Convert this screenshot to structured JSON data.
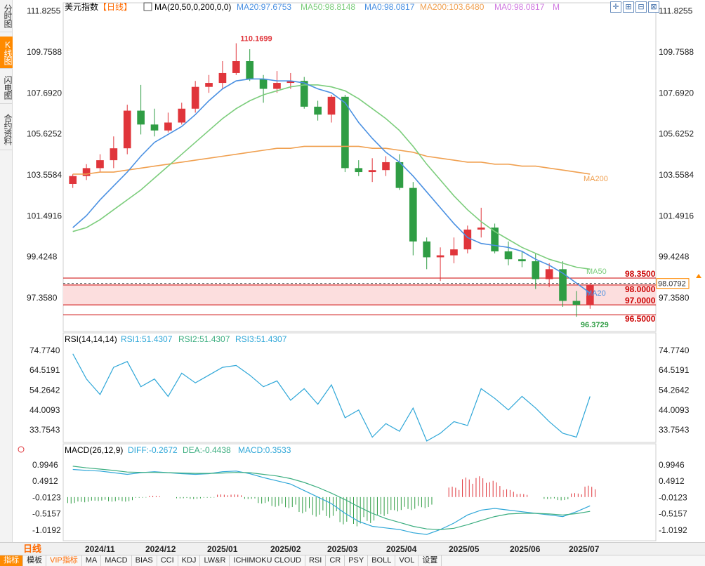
{
  "sidebar": {
    "tabs": [
      {
        "label": "分时图",
        "active": false
      },
      {
        "label": "K线图",
        "active": true
      },
      {
        "label": "闪电图",
        "active": false
      },
      {
        "label": "合约资料",
        "active": false
      }
    ]
  },
  "header": {
    "symbol": "美元指数",
    "period": "【日线】",
    "ma_label": "MA(20,50,0,200,0,0)",
    "ma_values": [
      {
        "text": "MA20:97.6753",
        "color": "#4a90e2"
      },
      {
        "text": "MA50:98.8148",
        "color": "#7ccd7c"
      },
      {
        "text": "MA0:98.0817",
        "color": "#4a90e2"
      },
      {
        "text": "MA200:103.6480",
        "color": "#f0a050"
      },
      {
        "text": "MA0:98.0817",
        "color": "#d07ae0"
      },
      {
        "text": "M",
        "color": "#d07ae0"
      }
    ]
  },
  "toolbar": {
    "icons": [
      {
        "name": "crosshair-icon",
        "glyph": "✛"
      },
      {
        "name": "zoom-in-icon",
        "glyph": "⊞"
      },
      {
        "name": "zoom-out-icon",
        "glyph": "⊟"
      },
      {
        "name": "fit-icon",
        "glyph": "⊠"
      }
    ]
  },
  "price_axis": {
    "ticks": [
      "111.8255",
      "109.7588",
      "107.6920",
      "105.6252",
      "103.5584",
      "101.4916",
      "99.4248",
      "97.3580"
    ]
  },
  "rsi_axis": {
    "ticks": [
      "74.7740",
      "64.5191",
      "54.2642",
      "44.0093",
      "33.7543"
    ]
  },
  "macd_axis": {
    "ticks": [
      "0.9946",
      "0.4912",
      "-0.0123",
      "-0.5157",
      "-1.0192"
    ]
  },
  "annotations": {
    "high_label": "110.1699",
    "low_label": "96.3729",
    "ma50_tag": "MA50",
    "ma20_tag": "MA20",
    "ma200_tag": "MA200",
    "current_price": "98.0792",
    "levels": [
      "98.3500",
      "98.0000",
      "97.0000",
      "96.5000"
    ]
  },
  "rsi_header": {
    "label": "RSI(14,14,14)",
    "v1": "RSI1:51.4307",
    "v2": "RSI2:51.4307",
    "v3": "RSI3:51.4307"
  },
  "macd_header": {
    "label": "MACD(26,12,9)",
    "diff": "DIFF:-0.2672",
    "dea": "DEA:-0.4438",
    "macd": "MACD:0.3533"
  },
  "bottom": {
    "period_label": "日线",
    "dates": [
      "2024/11",
      "2024/12",
      "2025/01",
      "2025/02",
      "2025/03",
      "2025/04",
      "2025/05",
      "2025/06",
      "2025/07"
    ],
    "indicator_tabs": [
      {
        "label": "指标",
        "active": true,
        "vip": false
      },
      {
        "label": "模板",
        "active": false,
        "vip": false
      },
      {
        "label": "VIP指标",
        "active": false,
        "vip": true
      },
      {
        "label": "MA",
        "active": false,
        "vip": false
      },
      {
        "label": "MACD",
        "active": false,
        "vip": false
      },
      {
        "label": "BIAS",
        "active": false,
        "vip": false
      },
      {
        "label": "CCI",
        "active": false,
        "vip": false
      },
      {
        "label": "KDJ",
        "active": false,
        "vip": false
      },
      {
        "label": "LW&R",
        "active": false,
        "vip": false
      },
      {
        "label": "ICHIMOKU CLOUD",
        "active": false,
        "vip": false
      },
      {
        "label": "RSI",
        "active": false,
        "vip": false
      },
      {
        "label": "CR",
        "active": false,
        "vip": false
      },
      {
        "label": "PSY",
        "active": false,
        "vip": false
      },
      {
        "label": "BOLL",
        "active": false,
        "vip": false
      },
      {
        "label": "VOL",
        "active": false,
        "vip": false
      },
      {
        "label": "设置",
        "active": false,
        "vip": false
      }
    ]
  },
  "colors": {
    "up": "#e0353b",
    "down": "#2f9d44",
    "ma20": "#4a90e2",
    "ma50": "#7ccd7c",
    "ma200": "#f0a050",
    "zone_fill": "#fcdede",
    "level_line": "#cc0000",
    "rsi": "#2fa7d8",
    "diff": "#2fa7d8",
    "dea": "#3cae80"
  },
  "chart_data": [
    {
      "type": "candlestick",
      "title": "美元指数【日线】",
      "x": [
        "2024-10-14",
        "2024-10-21",
        "2024-10-28",
        "2024-11-04",
        "2024-11-11",
        "2024-11-18",
        "2024-11-25",
        "2024-12-02",
        "2024-12-09",
        "2024-12-16",
        "2024-12-23",
        "2024-12-30",
        "2025-01-06",
        "2025-01-13",
        "2025-01-20",
        "2025-01-27",
        "2025-02-03",
        "2025-02-10",
        "2025-02-17",
        "2025-02-24",
        "2025-03-03",
        "2025-03-10",
        "2025-03-17",
        "2025-03-24",
        "2025-03-31",
        "2025-04-07",
        "2025-04-14",
        "2025-04-21",
        "2025-04-28",
        "2025-05-05",
        "2025-05-12",
        "2025-05-19",
        "2025-05-26",
        "2025-06-02",
        "2025-06-09",
        "2025-06-16",
        "2025-06-23",
        "2025-06-30",
        "2025-07-07"
      ],
      "open": [
        103.1,
        103.5,
        103.9,
        104.3,
        104.9,
        106.8,
        106.1,
        105.8,
        106.2,
        106.9,
        108.0,
        108.2,
        108.7,
        109.3,
        108.4,
        107.9,
        108.2,
        108.3,
        107.0,
        106.6,
        107.5,
        103.9,
        103.7,
        103.8,
        104.2,
        102.9,
        100.2,
        99.4,
        99.5,
        99.8,
        100.8,
        100.9,
        99.7,
        99.3,
        99.2,
        98.3,
        98.8,
        97.2,
        97.0
      ],
      "high": [
        103.6,
        104.1,
        104.6,
        105.5,
        107.1,
        108.1,
        106.9,
        106.7,
        107.2,
        108.3,
        108.6,
        109.3,
        110.2,
        109.9,
        108.6,
        108.8,
        108.7,
        108.5,
        107.3,
        107.6,
        107.6,
        104.3,
        104.4,
        104.5,
        104.6,
        103.2,
        100.4,
        99.9,
        100.4,
        101.0,
        101.9,
        101.1,
        100.2,
        99.7,
        99.6,
        99.1,
        99.2,
        97.7,
        98.1
      ],
      "low": [
        102.9,
        103.3,
        103.7,
        103.9,
        104.6,
        105.6,
        105.5,
        105.7,
        106.1,
        106.7,
        107.7,
        107.9,
        108.6,
        108.3,
        107.2,
        107.7,
        107.9,
        106.9,
        106.3,
        106.2,
        103.7,
        103.5,
        103.2,
        103.5,
        102.8,
        99.5,
        98.8,
        98.2,
        99.1,
        99.6,
        100.4,
        99.6,
        99.0,
        98.9,
        97.8,
        97.9,
        96.9,
        96.4,
        96.8
      ],
      "close": [
        103.5,
        103.9,
        104.3,
        104.9,
        106.8,
        106.1,
        105.8,
        106.2,
        106.9,
        108.0,
        108.2,
        108.7,
        109.3,
        108.4,
        107.9,
        108.2,
        108.3,
        107.0,
        106.6,
        107.5,
        103.9,
        103.7,
        103.8,
        104.2,
        102.9,
        100.2,
        99.4,
        99.5,
        99.8,
        100.8,
        100.9,
        99.7,
        99.3,
        99.2,
        98.3,
        98.8,
        97.2,
        97.0,
        98.0
      ],
      "ma20": [
        100.9,
        101.5,
        102.3,
        103.0,
        103.7,
        104.5,
        105.2,
        105.6,
        106.0,
        106.6,
        107.3,
        107.9,
        108.3,
        108.4,
        108.4,
        108.3,
        108.3,
        108.2,
        107.9,
        107.7,
        107.2,
        106.2,
        105.4,
        104.7,
        104.2,
        103.5,
        102.7,
        101.9,
        101.1,
        100.4,
        100.1,
        100.0,
        99.9,
        99.7,
        99.3,
        99.0,
        98.6,
        98.1,
        97.6
      ],
      "ma50": [
        100.7,
        100.9,
        101.3,
        101.8,
        102.3,
        102.8,
        103.4,
        104.0,
        104.6,
        105.2,
        105.8,
        106.4,
        106.9,
        107.3,
        107.6,
        107.8,
        108.0,
        108.1,
        108.1,
        108.0,
        107.8,
        107.4,
        106.9,
        106.4,
        105.8,
        105.0,
        104.1,
        103.3,
        102.5,
        101.8,
        101.2,
        100.7,
        100.3,
        99.9,
        99.6,
        99.3,
        99.1,
        98.9,
        98.8
      ],
      "ma200": [
        103.6,
        103.6,
        103.7,
        103.7,
        103.8,
        103.9,
        104.0,
        104.1,
        104.2,
        104.3,
        104.4,
        104.5,
        104.6,
        104.7,
        104.8,
        104.9,
        104.9,
        105.0,
        105.0,
        105.0,
        105.0,
        105.0,
        104.9,
        104.9,
        104.8,
        104.7,
        104.5,
        104.4,
        104.3,
        104.2,
        104.2,
        104.1,
        104.1,
        104.0,
        104.0,
        103.9,
        103.8,
        103.7,
        103.6
      ],
      "ylim": [
        95.8,
        112.1
      ],
      "y_ticks": [
        111.8255,
        109.7588,
        107.692,
        105.6252,
        103.5584,
        101.4916,
        99.4248,
        97.358
      ],
      "levels": [
        98.35,
        98.0,
        97.0,
        96.5
      ],
      "current": 98.0792,
      "max_label": 110.1699,
      "min_label": 96.3729
    },
    {
      "type": "line",
      "title": "RSI(14,14,14)",
      "series": [
        {
          "name": "RSI1",
          "values": [
            73,
            60,
            52,
            66,
            69,
            56,
            60,
            51,
            63,
            58,
            62,
            66,
            67,
            62,
            56,
            59,
            49,
            55,
            47,
            57,
            40,
            44,
            30,
            37,
            33,
            45,
            28,
            32,
            38,
            36,
            55,
            50,
            44,
            51,
            45,
            38,
            32,
            30,
            51
          ]
        }
      ],
      "ylim": [
        28,
        78
      ]
    },
    {
      "type": "bar",
      "title": "MACD(26,12,9)",
      "series": [
        {
          "name": "DIFF",
          "values": [
            0.85,
            0.82,
            0.8,
            0.75,
            0.7,
            0.75,
            0.78,
            0.75,
            0.72,
            0.7,
            0.72,
            0.78,
            0.8,
            0.72,
            0.6,
            0.5,
            0.4,
            0.2,
            0.0,
            -0.2,
            -0.5,
            -0.75,
            -0.9,
            -0.95,
            -1.0,
            -1.1,
            -1.15,
            -1.0,
            -0.8,
            -0.55,
            -0.4,
            -0.35,
            -0.4,
            -0.45,
            -0.5,
            -0.55,
            -0.6,
            -0.45,
            -0.27
          ]
        },
        {
          "name": "DEA",
          "values": [
            0.95,
            0.9,
            0.86,
            0.82,
            0.77,
            0.76,
            0.76,
            0.75,
            0.74,
            0.73,
            0.73,
            0.74,
            0.76,
            0.75,
            0.7,
            0.65,
            0.57,
            0.45,
            0.3,
            0.12,
            -0.08,
            -0.3,
            -0.5,
            -0.66,
            -0.78,
            -0.9,
            -0.98,
            -1.0,
            -0.96,
            -0.85,
            -0.72,
            -0.6,
            -0.52,
            -0.5,
            -0.5,
            -0.52,
            -0.55,
            -0.51,
            -0.44
          ]
        },
        {
          "name": "MACD",
          "values": [
            -0.2,
            -0.16,
            -0.12,
            -0.14,
            -0.14,
            -0.02,
            0.04,
            0.0,
            -0.04,
            -0.06,
            -0.02,
            0.08,
            0.08,
            -0.06,
            -0.2,
            -0.3,
            -0.34,
            -0.5,
            -0.6,
            -0.64,
            -0.84,
            -0.9,
            -0.8,
            -0.58,
            -0.44,
            -0.4,
            -0.34,
            0.0,
            0.32,
            0.6,
            0.64,
            0.5,
            0.24,
            0.1,
            0.0,
            -0.06,
            -0.1,
            0.12,
            0.35
          ]
        }
      ],
      "ylim": [
        -1.3,
        1.25
      ]
    }
  ]
}
